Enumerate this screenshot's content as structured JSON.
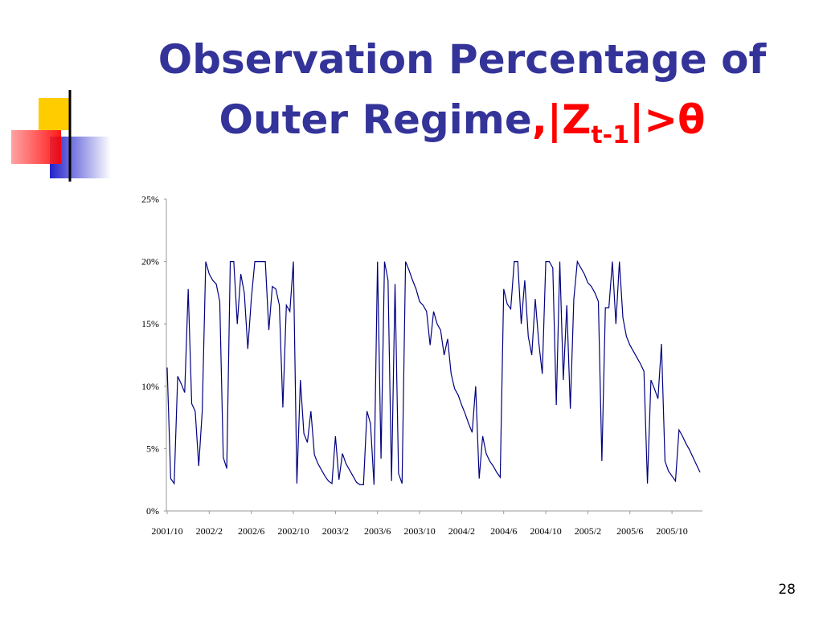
{
  "slide": {
    "title_line1": "Observation Percentage of",
    "title_line2": "Outer Regime",
    "math_prefix": ",|Z",
    "math_subscript": "t-1",
    "math_suffix": "|>θ",
    "page_number": "28"
  },
  "chart_data": {
    "type": "line",
    "color": "#000080",
    "categories": [
      "2001/10",
      null,
      null,
      null,
      null,
      null,
      null,
      null,
      null,
      null,
      null,
      null,
      "2002/2",
      null,
      null,
      null,
      null,
      null,
      null,
      null,
      null,
      null,
      null,
      null,
      "2002/6",
      null,
      null,
      null,
      null,
      null,
      null,
      null,
      null,
      null,
      null,
      null,
      "2002/10",
      null,
      null,
      null,
      null,
      null,
      null,
      null,
      null,
      null,
      null,
      null,
      "2003/2",
      null,
      null,
      null,
      null,
      null,
      null,
      null,
      null,
      null,
      null,
      null,
      "2003/6",
      null,
      null,
      null,
      null,
      null,
      null,
      null,
      null,
      null,
      null,
      null,
      "2003/10",
      null,
      null,
      null,
      null,
      null,
      null,
      null,
      null,
      null,
      null,
      null,
      "2004/2",
      null,
      null,
      null,
      null,
      null,
      null,
      null,
      null,
      null,
      null,
      null,
      "2004/6",
      null,
      null,
      null,
      null,
      null,
      null,
      null,
      null,
      null,
      null,
      null,
      "2004/10",
      null,
      null,
      null,
      null,
      null,
      null,
      null,
      null,
      null,
      null,
      null,
      "2005/2",
      null,
      null,
      null,
      null,
      null,
      null,
      null,
      null,
      null,
      null,
      null,
      "2005/6",
      null,
      null,
      null,
      null,
      null,
      null,
      null,
      null,
      null,
      null,
      null,
      "2005/10",
      null,
      null,
      null,
      null,
      null,
      null,
      null,
      null
    ],
    "values": [
      11.5,
      2.6,
      2.2,
      10.8,
      10.2,
      9.5,
      17.8,
      8.6,
      8.0,
      3.6,
      8.0,
      20,
      19,
      18.5,
      18.2,
      16.8,
      4.3,
      3.4,
      20,
      20,
      15,
      19.0,
      17.5,
      13,
      17,
      20,
      20,
      20,
      20,
      14.5,
      18,
      17.8,
      16.5,
      8.3,
      16.5,
      16,
      20,
      2.2,
      10.5,
      6.2,
      5.5,
      8.0,
      4.5,
      3.8,
      3.3,
      2.8,
      2.4,
      2.2,
      6.0,
      2.5,
      4.6,
      3.8,
      3.3,
      2.8,
      2.3,
      2.1,
      2.1,
      8.0,
      7.0,
      2.1,
      20,
      4.2,
      20,
      18.5,
      2.4,
      18.2,
      3.0,
      2.2,
      20,
      19.3,
      18.5,
      17.8,
      16.8,
      16.5,
      16.0,
      13.3,
      16.0,
      15.0,
      14.5,
      12.5,
      13.8,
      11.0,
      9.8,
      9.3,
      8.5,
      7.8,
      7.0,
      6.3,
      10.0,
      2.6,
      6.0,
      4.6,
      4.0,
      3.6,
      3.1,
      2.7,
      17.8,
      16.6,
      16.2,
      20,
      20,
      15.0,
      18.5,
      14.0,
      12.5,
      17.0,
      13.5,
      11.0,
      20,
      20,
      19.5,
      8.5,
      20,
      10.5,
      16.5,
      8.2,
      17.0,
      20,
      19.5,
      19.0,
      18.3,
      18.0,
      17.5,
      16.8,
      4.0,
      16.3,
      16.3,
      20,
      15.0,
      20,
      15.5,
      14.0,
      13.3,
      12.8,
      12.3,
      11.8,
      11.2,
      2.2,
      10.5,
      9.8,
      9.0,
      13.4,
      4.0,
      3.2,
      2.8,
      2.4,
      6.5,
      6.0,
      5.4,
      4.9,
      4.3,
      3.7,
      3.1
    ],
    "ylim": [
      0,
      25
    ],
    "yticks": [
      {
        "value": 0,
        "label": "0%"
      },
      {
        "value": 5,
        "label": "5%"
      },
      {
        "value": 10,
        "label": "10%"
      },
      {
        "value": 15,
        "label": "15%"
      },
      {
        "value": 20,
        "label": "20%"
      },
      {
        "value": 25,
        "label": "25%"
      }
    ],
    "grid": false
  }
}
